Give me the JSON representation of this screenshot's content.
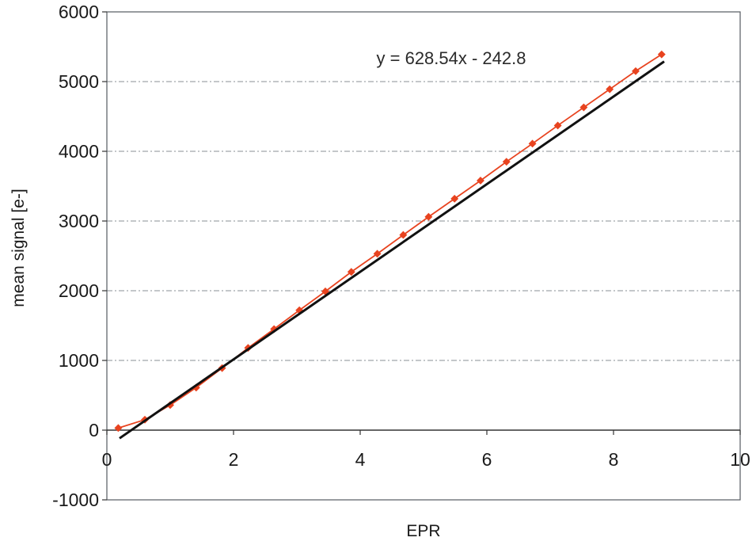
{
  "chart_data": {
    "type": "scatter",
    "xlabel": "EPR",
    "ylabel": "mean signal [e-]",
    "xlim": [
      0,
      10
    ],
    "ylim": [
      -1000,
      6000
    ],
    "xticks": [
      0,
      2,
      4,
      6,
      8,
      10
    ],
    "yticks": [
      -1000,
      0,
      1000,
      2000,
      3000,
      4000,
      5000,
      6000
    ],
    "grid": "horizontal",
    "series": [
      {
        "name": "",
        "color": "#e8431f",
        "marker_color": "#e8431f",
        "points": [
          {
            "x": 0.18,
            "y": 30
          },
          {
            "x": 0.6,
            "y": 150
          },
          {
            "x": 1.0,
            "y": 360
          },
          {
            "x": 1.41,
            "y": 610
          },
          {
            "x": 1.82,
            "y": 890
          },
          {
            "x": 2.23,
            "y": 1180
          },
          {
            "x": 2.64,
            "y": 1450
          },
          {
            "x": 3.04,
            "y": 1720
          },
          {
            "x": 3.45,
            "y": 1990
          },
          {
            "x": 3.86,
            "y": 2270
          },
          {
            "x": 4.27,
            "y": 2530
          },
          {
            "x": 4.68,
            "y": 2800
          },
          {
            "x": 5.08,
            "y": 3060
          },
          {
            "x": 5.49,
            "y": 3320
          },
          {
            "x": 5.9,
            "y": 3580
          },
          {
            "x": 6.31,
            "y": 3850
          },
          {
            "x": 6.72,
            "y": 4110
          },
          {
            "x": 7.12,
            "y": 4370
          },
          {
            "x": 7.53,
            "y": 4630
          },
          {
            "x": 7.94,
            "y": 4890
          },
          {
            "x": 8.35,
            "y": 5150
          },
          {
            "x": 8.76,
            "y": 5390
          }
        ]
      }
    ],
    "trendline": {
      "slope": 628.54,
      "intercept": -242.8,
      "x_range": [
        0.2,
        8.8
      ],
      "color": "#111111",
      "equation": "y = 628.54x - 242.8"
    }
  }
}
